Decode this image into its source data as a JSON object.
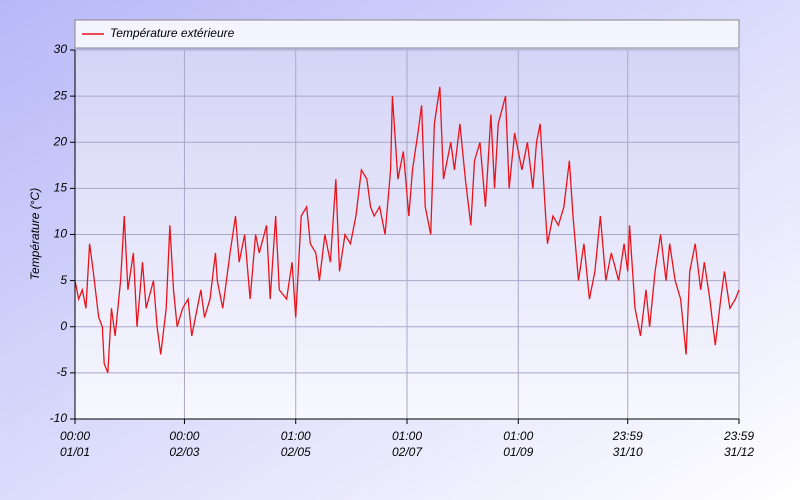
{
  "chart_data": {
    "type": "line",
    "ylabel": "Température (°C)",
    "x": [
      0,
      2,
      4,
      6,
      8,
      10,
      13,
      15,
      16,
      18,
      20,
      22,
      25,
      27,
      29,
      32,
      34,
      37,
      39,
      43,
      45,
      47,
      50,
      52,
      54,
      56,
      59,
      62,
      64,
      66,
      69,
      71,
      74,
      77,
      78,
      81,
      85,
      88,
      90,
      93,
      96,
      99,
      101,
      105,
      107,
      110,
      112,
      116,
      119,
      121,
      124,
      127,
      129,
      132,
      134,
      137,
      140,
      143,
      145,
      148,
      151,
      154,
      157,
      160,
      162,
      164,
      167,
      170,
      173,
      174,
      177,
      180,
      183,
      185,
      188,
      190,
      192,
      195,
      197,
      200,
      202,
      206,
      208,
      211,
      214,
      217,
      219,
      222,
      225,
      228,
      230,
      232,
      236,
      238,
      241,
      245,
      248,
      251,
      253,
      255,
      258,
      259,
      262,
      265,
      268,
      271,
      273,
      276,
      279,
      282,
      285,
      288,
      291,
      294,
      298,
      301,
      303,
      304,
      307,
      310,
      313,
      315,
      318,
      321,
      324,
      326,
      329,
      332,
      335,
      337,
      340,
      343,
      345,
      348,
      351,
      354,
      356,
      359,
      362,
      364
    ],
    "series": [
      {
        "name": "Température extérieure",
        "color": "#e8141c",
        "values": [
          5,
          3,
          4,
          2,
          9,
          6,
          1,
          0,
          -4,
          -5,
          2,
          -1,
          5,
          12,
          4,
          8,
          0,
          7,
          2,
          5,
          0,
          -3,
          2,
          11,
          4,
          0,
          2,
          3,
          -1,
          1,
          4,
          1,
          3,
          8,
          5,
          2,
          8,
          12,
          7,
          10,
          3,
          10,
          8,
          11,
          3,
          12,
          4,
          3,
          7,
          1,
          12,
          13,
          9,
          8,
          5,
          10,
          7,
          16,
          6,
          10,
          9,
          12,
          17,
          16,
          13,
          12,
          13,
          10,
          17,
          25,
          16,
          19,
          12,
          17,
          21,
          24,
          13,
          10,
          22,
          26,
          16,
          20,
          17,
          22,
          16,
          11,
          18,
          20,
          13,
          23,
          15,
          22,
          25,
          15,
          21,
          17,
          20,
          15,
          20,
          22,
          12,
          9,
          12,
          11,
          13,
          18,
          12,
          5,
          9,
          3,
          6,
          12,
          5,
          8,
          5,
          9,
          6,
          11,
          2,
          -1,
          4,
          0,
          6,
          10,
          5,
          9,
          5,
          3,
          -3,
          6,
          9,
          4,
          7,
          3,
          -2,
          3,
          6,
          2,
          3,
          4
        ]
      }
    ],
    "xlim": [
      0,
      364
    ],
    "xticks": [
      {
        "value": 0,
        "label": "00:00\n01/01"
      },
      {
        "value": 60,
        "label": "00:00\n02/03"
      },
      {
        "value": 121,
        "label": "01:00\n02/05"
      },
      {
        "value": 182,
        "label": "01:00\n02/07"
      },
      {
        "value": 243,
        "label": "01:00\n01/09"
      },
      {
        "value": 303,
        "label": "23:59\n31/10"
      },
      {
        "value": 364,
        "label": "23:59\n31/12"
      }
    ],
    "ylim": [
      -10,
      30
    ],
    "yticks": [
      -10,
      -5,
      0,
      5,
      10,
      15,
      20,
      25,
      30
    ],
    "grid": true
  }
}
